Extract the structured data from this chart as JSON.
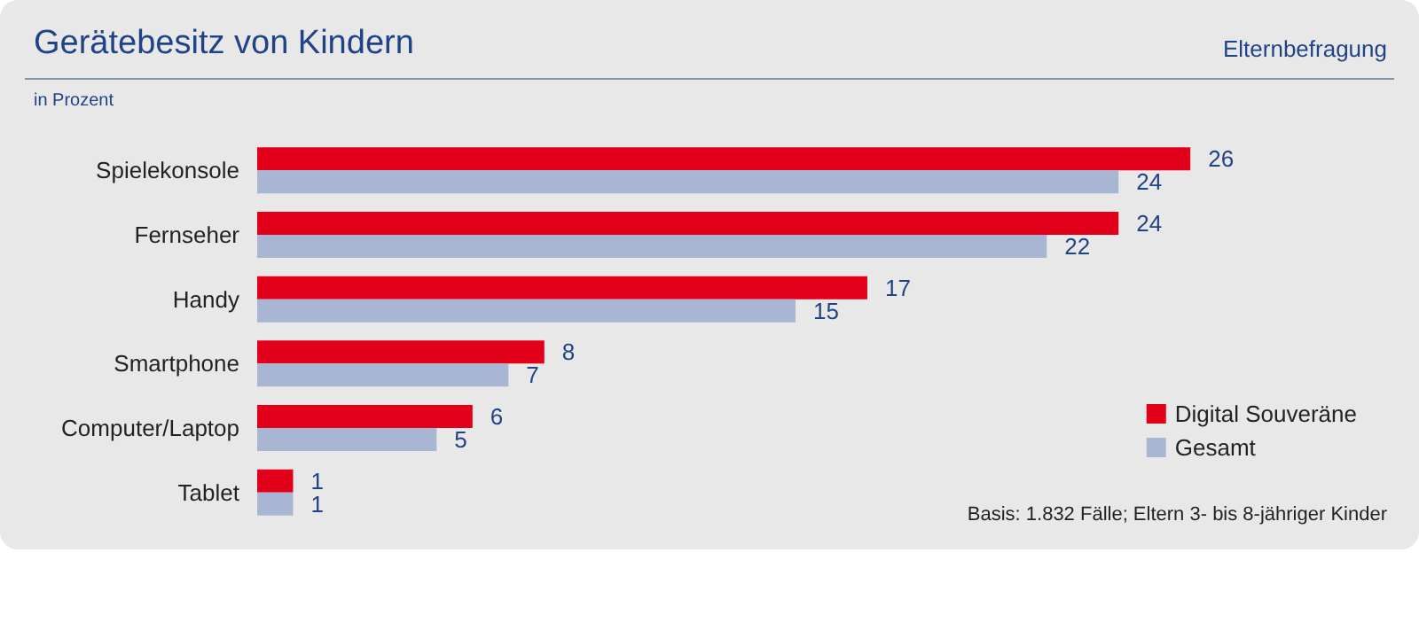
{
  "chart_data": {
    "type": "bar",
    "orientation": "horizontal",
    "title": "Gerätebesitz von Kindern",
    "subtitle": "in Prozent",
    "annotations": [
      "Elternbefragung",
      "Basis: 1.832 Fälle; Eltern 3- bis 8-jähriger Kinder"
    ],
    "categories": [
      "Spielekonsole",
      "Fernseher",
      "Handy",
      "Smartphone",
      "Computer/Laptop",
      "Tablet"
    ],
    "series": [
      {
        "name": "Digital Souveräne",
        "color": "#e2001a",
        "values": [
          26,
          24,
          17,
          8,
          6,
          1
        ]
      },
      {
        "name": "Gesamt",
        "color": "#a9b6d3",
        "values": [
          24,
          22,
          15,
          7,
          5,
          1
        ]
      }
    ],
    "data_labels": true,
    "legend": "bottom right"
  }
}
